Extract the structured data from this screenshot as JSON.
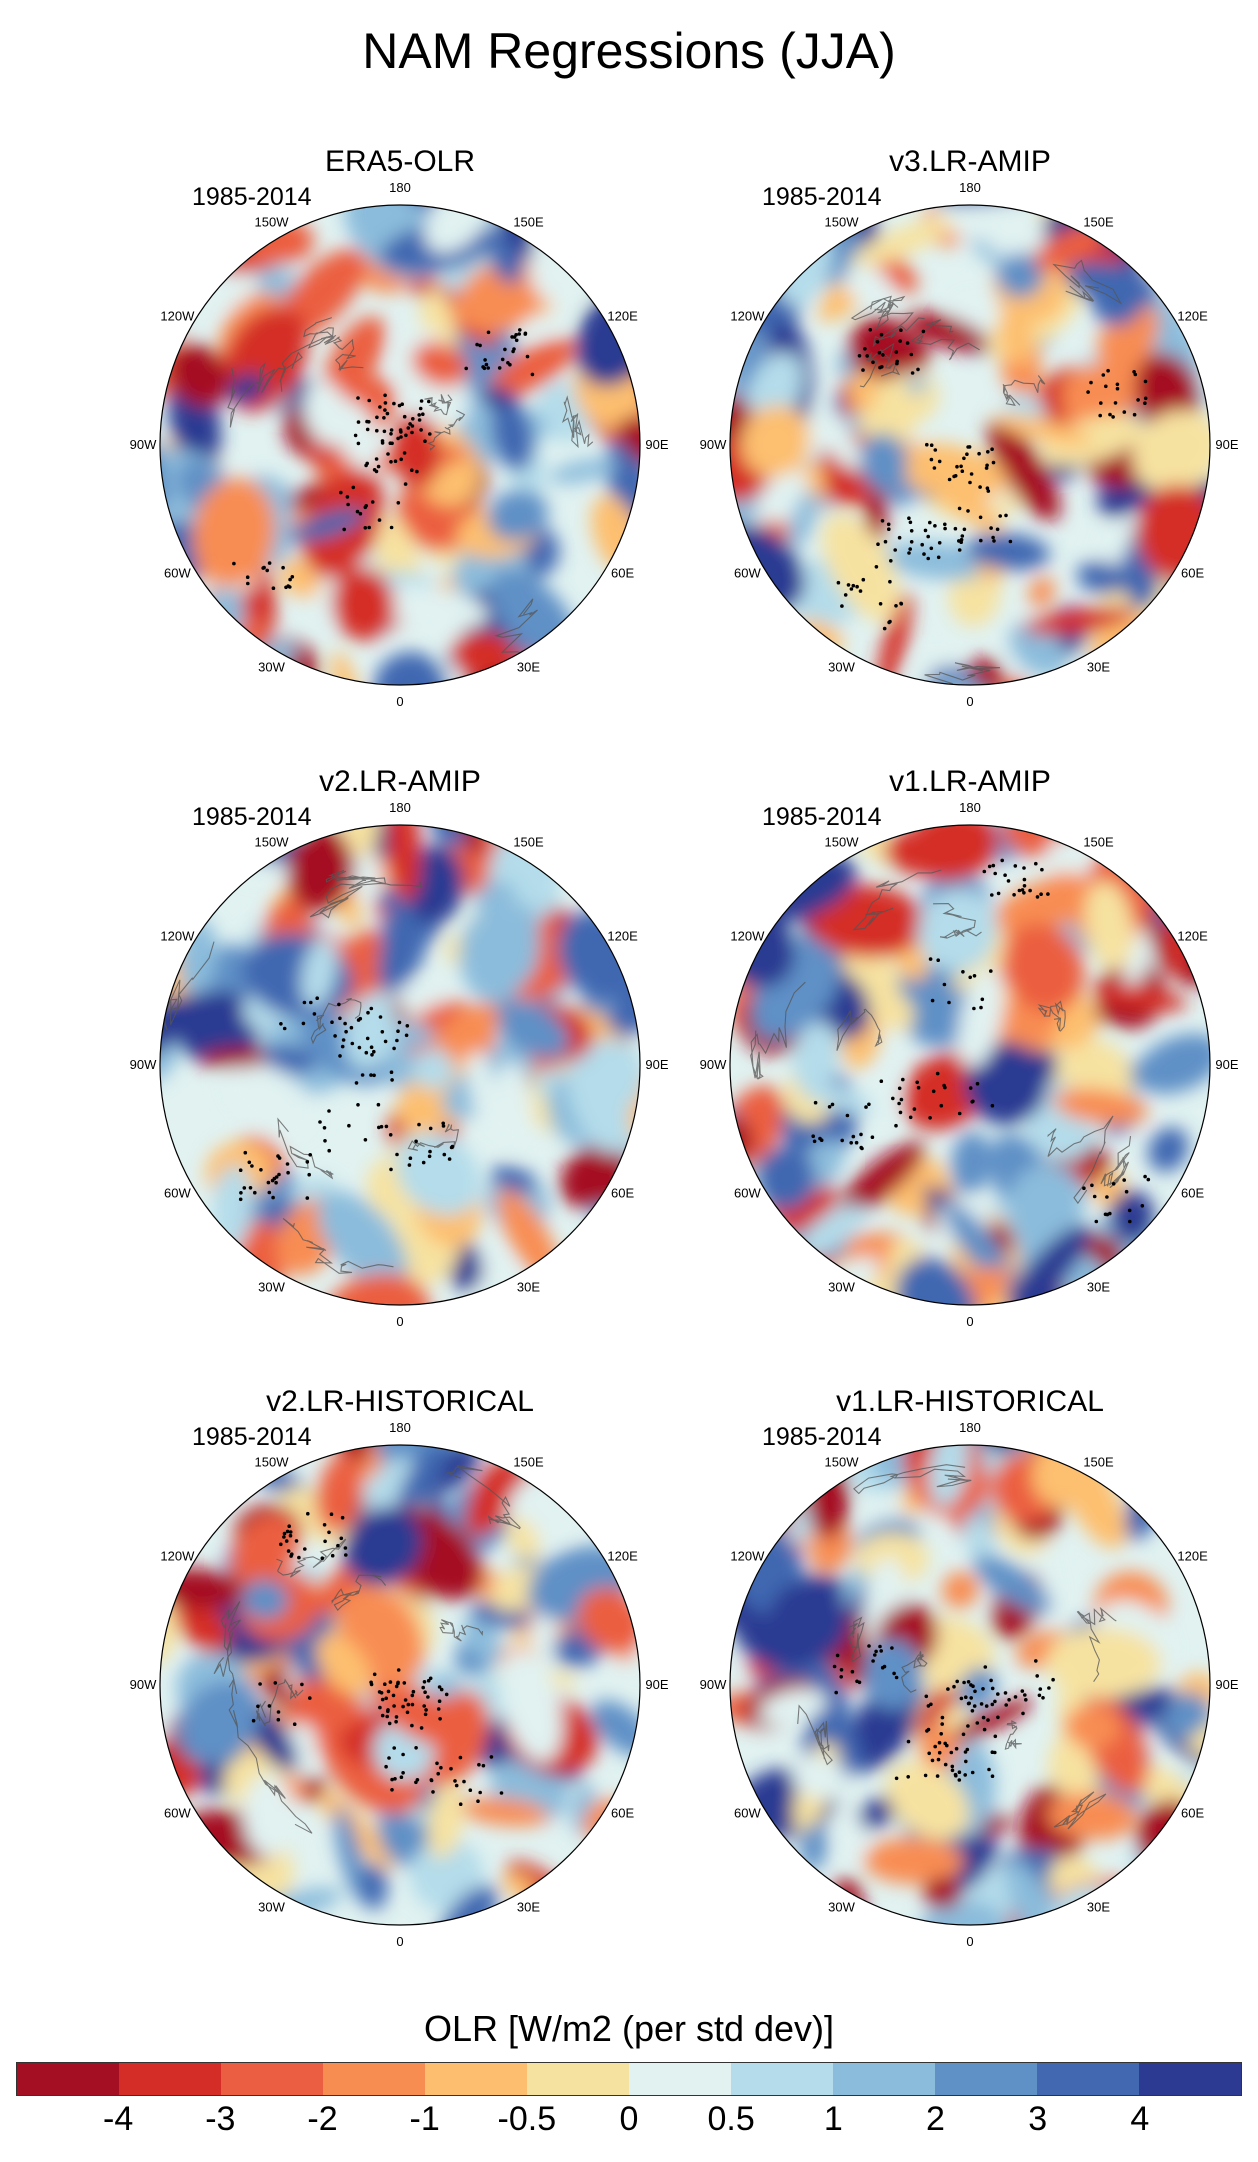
{
  "title": "NAM Regressions (JJA)",
  "panels": [
    {
      "title": "ERA5-OLR",
      "period": "1985-2014"
    },
    {
      "title": "v3.LR-AMIP",
      "period": "1985-2014"
    },
    {
      "title": "v2.LR-AMIP",
      "period": "1985-2014"
    },
    {
      "title": "v1.LR-AMIP",
      "period": "1985-2014"
    },
    {
      "title": "v2.LR-HISTORICAL",
      "period": "1985-2014"
    },
    {
      "title": "v1.LR-HISTORICAL",
      "period": "1985-2014"
    }
  ],
  "longitude_labels": [
    "180",
    "150E",
    "120E",
    "90E",
    "60E",
    "30E",
    "0",
    "30W",
    "60W",
    "90W",
    "120W",
    "150W"
  ],
  "colorbar": {
    "title": "OLR [W/m2 (per std dev)]",
    "ticks": [
      "-4",
      "-3",
      "-2",
      "-1",
      "-0.5",
      "0",
      "0.5",
      "1",
      "2",
      "3",
      "4"
    ],
    "colors": [
      "#a50f24",
      "#d42d27",
      "#eb5e41",
      "#f88d52",
      "#fdbf6f",
      "#f6e2a0",
      "#e1f2f1",
      "#b4dcea",
      "#8bbcdb",
      "#5f90c6",
      "#4168b1",
      "#2c3a92"
    ]
  },
  "colors": {
    "stipple": "#000000",
    "coastline": "#555555",
    "map_border": "#000000"
  }
}
